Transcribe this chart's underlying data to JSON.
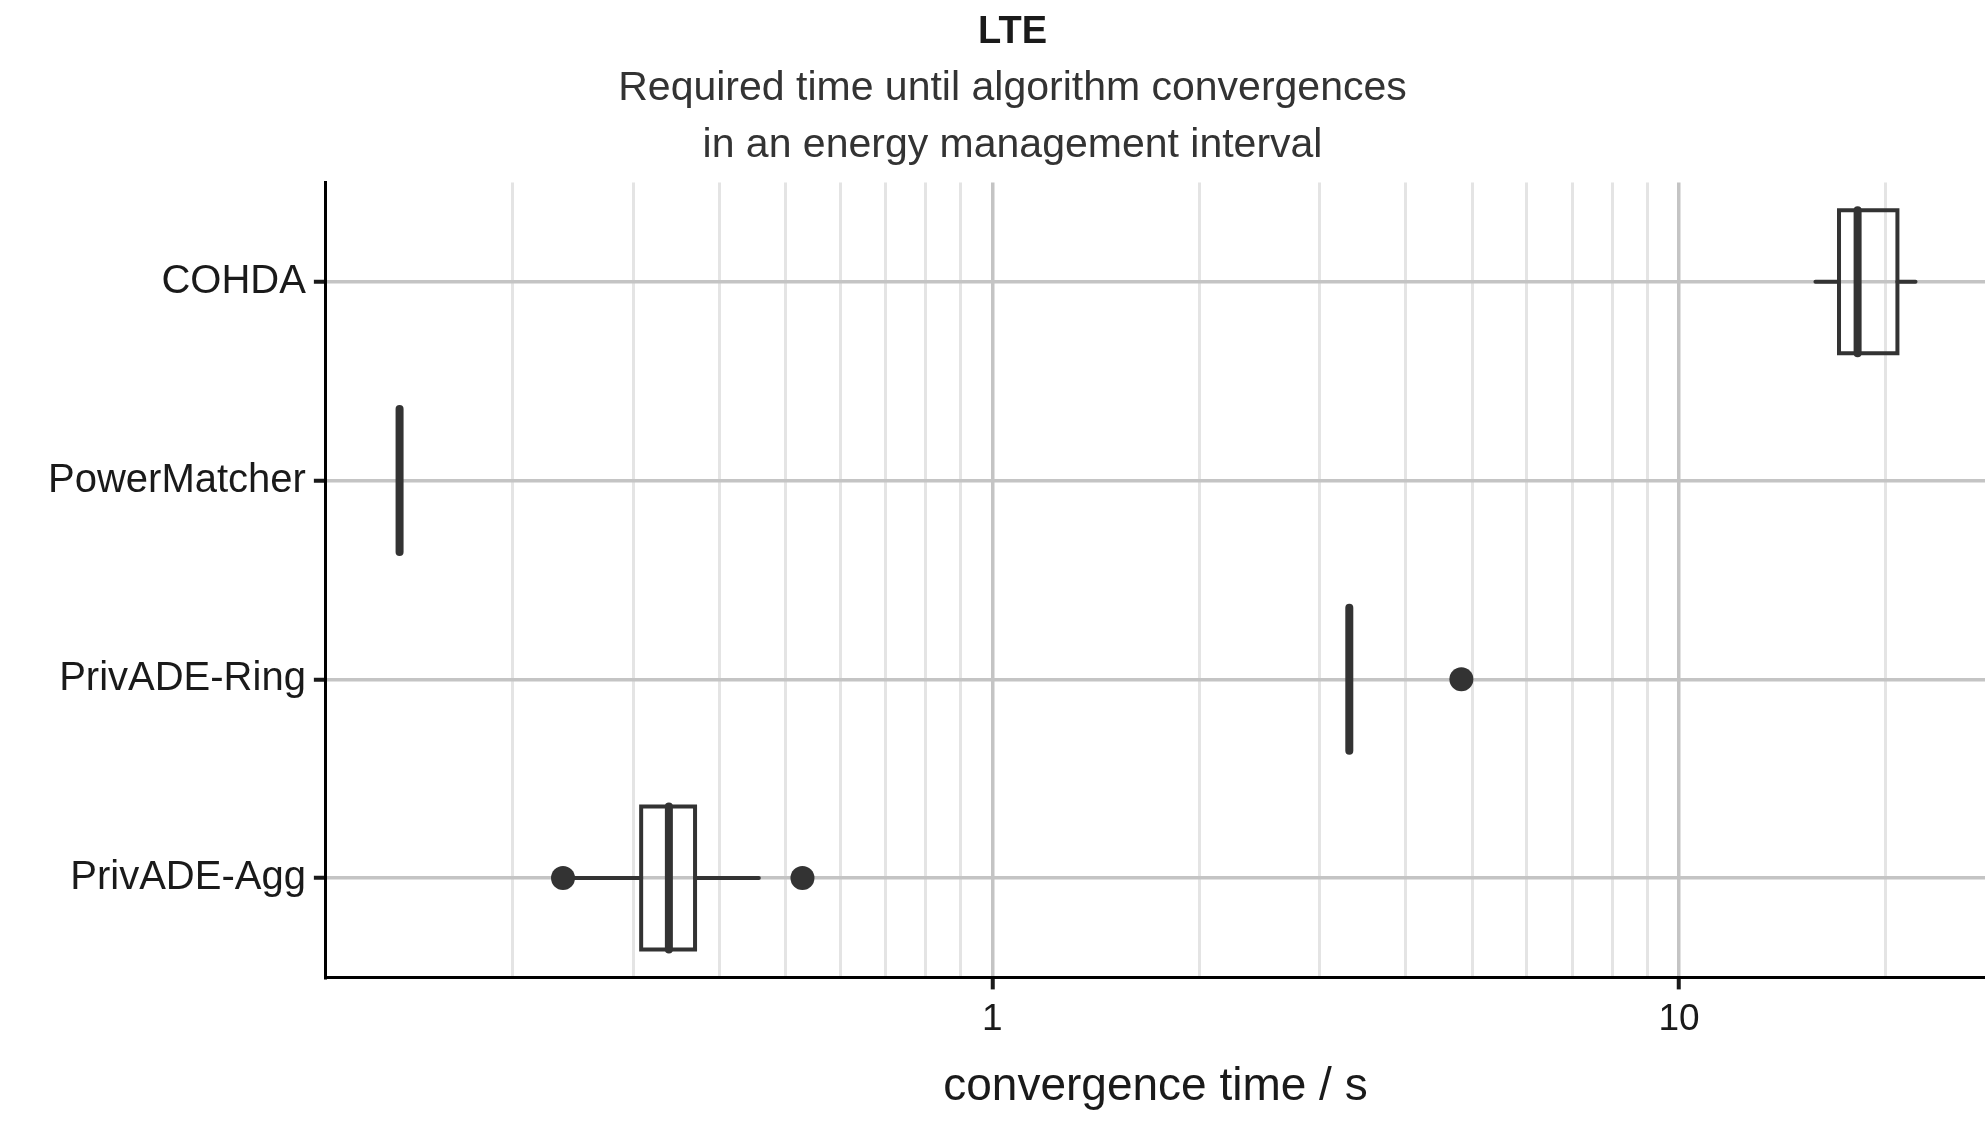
{
  "chart_data": {
    "type": "box",
    "title": "LTE",
    "subtitle": "Required time until algorithm convergences\nin an energy management interval",
    "xlabel": "convergence time / s",
    "orientation": "horizontal",
    "color": "#333333",
    "log": "x",
    "grid": true,
    "xlim": [
      0.107,
      27.9
    ],
    "xticks": [
      {
        "value": 0.2,
        "label": null
      },
      {
        "value": 0.3,
        "label": null
      },
      {
        "value": 0.4,
        "label": null
      },
      {
        "value": 0.5,
        "label": null
      },
      {
        "value": 0.6,
        "label": null
      },
      {
        "value": 0.7,
        "label": null
      },
      {
        "value": 0.8,
        "label": null
      },
      {
        "value": 0.9,
        "label": null
      },
      1,
      {
        "value": 2,
        "label": null
      },
      {
        "value": 3,
        "label": null
      },
      {
        "value": 4,
        "label": null
      },
      {
        "value": 5,
        "label": null
      },
      {
        "value": 6,
        "label": null
      },
      {
        "value": 7,
        "label": null
      },
      {
        "value": 8,
        "label": null
      },
      {
        "value": 9,
        "label": null
      },
      10,
      {
        "value": 20,
        "label": null
      }
    ],
    "categories": [
      "COHDA",
      "PowerMatcher",
      "PrivADE-Ring",
      "PrivADE-Agg"
    ],
    "boxes": [
      {
        "low": 15.8,
        "q1": 17.1,
        "median": 18.2,
        "q3": 20.8,
        "high": 22.1
      },
      {
        "low": 0.137,
        "q1": 0.137,
        "median": 0.137,
        "q3": 0.137,
        "high": 0.137
      },
      {
        "low": 3.31,
        "q1": 3.31,
        "median": 3.31,
        "q3": 3.31,
        "high": 3.31,
        "outliers": [
          4.82
        ]
      },
      {
        "low": 0.24,
        "q1": 0.308,
        "median": 0.338,
        "q3": 0.369,
        "high": 0.457,
        "outliers": [
          0.237,
          0.529
        ]
      }
    ]
  }
}
